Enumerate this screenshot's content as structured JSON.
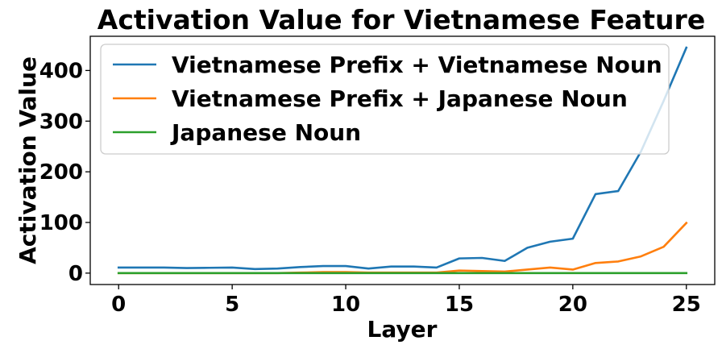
{
  "chart_data": {
    "type": "line",
    "title": "Activation Value for Vietnamese Feature",
    "xlabel": "Layer",
    "ylabel": "Activation Value",
    "xlim": [
      -1.25,
      26.25
    ],
    "ylim": [
      -22.5,
      467.5
    ],
    "xticks": [
      0,
      5,
      10,
      15,
      20,
      25
    ],
    "yticks": [
      0,
      100,
      200,
      300,
      400
    ],
    "grid": false,
    "legend_position": "top-left",
    "x": [
      0,
      1,
      2,
      3,
      4,
      5,
      6,
      7,
      8,
      9,
      10,
      11,
      12,
      13,
      14,
      15,
      16,
      17,
      18,
      19,
      20,
      21,
      22,
      23,
      24,
      25
    ],
    "series": [
      {
        "name": "Vietnamese Prefix + Vietnamese Noun",
        "color": "#1f77b4",
        "values": [
          11,
          11,
          11,
          10,
          10.5,
          11,
          8,
          9,
          12,
          14,
          14,
          9,
          13,
          13,
          11,
          29,
          30,
          24,
          50,
          62,
          68,
          156,
          162,
          240,
          340,
          445
        ]
      },
      {
        "name": "Vietnamese Prefix + Japanese Noun",
        "color": "#ff7f0e",
        "values": [
          0,
          0,
          0,
          0,
          0,
          0,
          0,
          0,
          1,
          2,
          2,
          1,
          1,
          1,
          1,
          5,
          4,
          3,
          7,
          11,
          7,
          20,
          23,
          33,
          52,
          99
        ]
      },
      {
        "name": "Japanese Noun",
        "color": "#2ca02c",
        "values": [
          0,
          0,
          0,
          0,
          0,
          0,
          0,
          0,
          0,
          0,
          0,
          0,
          0,
          0,
          0,
          0,
          0,
          0,
          0,
          0,
          0,
          0,
          0,
          0,
          0,
          0
        ]
      }
    ]
  }
}
